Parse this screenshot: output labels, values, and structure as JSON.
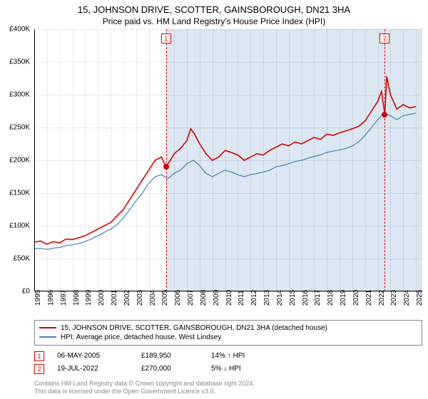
{
  "title": "15, JOHNSON DRIVE, SCOTTER, GAINSBOROUGH, DN21 3HA",
  "subtitle": "Price paid vs. HM Land Registry's House Price Index (HPI)",
  "chart": {
    "type": "line",
    "background_color": "#ffffff",
    "grid_color": "#e8e8e8",
    "shade_color": "#dbe7f2",
    "xlim": [
      1995,
      2025.5
    ],
    "ylim": [
      0,
      400000
    ],
    "yticks": [
      {
        "v": 0,
        "label": "£0"
      },
      {
        "v": 50000,
        "label": "£50K"
      },
      {
        "v": 100000,
        "label": "£100K"
      },
      {
        "v": 150000,
        "label": "£150K"
      },
      {
        "v": 200000,
        "label": "£200K"
      },
      {
        "v": 250000,
        "label": "£250K"
      },
      {
        "v": 300000,
        "label": "£300K"
      },
      {
        "v": 350000,
        "label": "£350K"
      },
      {
        "v": 400000,
        "label": "£400K"
      }
    ],
    "xticks": [
      1995,
      1996,
      1997,
      1998,
      1999,
      2000,
      2001,
      2002,
      2003,
      2004,
      2005,
      2006,
      2007,
      2008,
      2009,
      2010,
      2011,
      2012,
      2013,
      2014,
      2015,
      2016,
      2017,
      2018,
      2019,
      2020,
      2021,
      2022,
      2023,
      2024,
      2025
    ],
    "shade_start": 2005.35,
    "shade_end": 2025.5,
    "series": [
      {
        "name": "price_paid",
        "label": "15, JOHNSON DRIVE, SCOTTER, GAINSBOROUGH, DN21 3HA (detached house)",
        "color": "#d40000",
        "width": 1.6,
        "points": [
          [
            1995.0,
            75000
          ],
          [
            1995.5,
            77000
          ],
          [
            1996.0,
            72000
          ],
          [
            1996.5,
            76000
          ],
          [
            1997.0,
            74000
          ],
          [
            1997.5,
            80000
          ],
          [
            1998.0,
            79000
          ],
          [
            1998.5,
            82000
          ],
          [
            1999.0,
            85000
          ],
          [
            1999.5,
            90000
          ],
          [
            2000.0,
            95000
          ],
          [
            2000.5,
            100000
          ],
          [
            2001.0,
            105000
          ],
          [
            2001.5,
            115000
          ],
          [
            2002.0,
            125000
          ],
          [
            2002.5,
            140000
          ],
          [
            2003.0,
            155000
          ],
          [
            2003.5,
            170000
          ],
          [
            2004.0,
            185000
          ],
          [
            2004.5,
            200000
          ],
          [
            2005.0,
            205000
          ],
          [
            2005.35,
            189950
          ],
          [
            2005.7,
            200000
          ],
          [
            2006.0,
            210000
          ],
          [
            2006.5,
            218000
          ],
          [
            2007.0,
            230000
          ],
          [
            2007.3,
            248000
          ],
          [
            2007.6,
            240000
          ],
          [
            2008.0,
            225000
          ],
          [
            2008.5,
            210000
          ],
          [
            2009.0,
            200000
          ],
          [
            2009.5,
            205000
          ],
          [
            2010.0,
            215000
          ],
          [
            2010.5,
            212000
          ],
          [
            2011.0,
            208000
          ],
          [
            2011.5,
            200000
          ],
          [
            2012.0,
            205000
          ],
          [
            2012.5,
            210000
          ],
          [
            2013.0,
            208000
          ],
          [
            2013.5,
            215000
          ],
          [
            2014.0,
            220000
          ],
          [
            2014.5,
            225000
          ],
          [
            2015.0,
            222000
          ],
          [
            2015.5,
            228000
          ],
          [
            2016.0,
            225000
          ],
          [
            2016.5,
            230000
          ],
          [
            2017.0,
            235000
          ],
          [
            2017.5,
            232000
          ],
          [
            2018.0,
            240000
          ],
          [
            2018.5,
            238000
          ],
          [
            2019.0,
            242000
          ],
          [
            2019.5,
            245000
          ],
          [
            2020.0,
            248000
          ],
          [
            2020.5,
            252000
          ],
          [
            2021.0,
            260000
          ],
          [
            2021.5,
            275000
          ],
          [
            2022.0,
            290000
          ],
          [
            2022.3,
            305000
          ],
          [
            2022.55,
            270000
          ],
          [
            2022.7,
            328000
          ],
          [
            2023.0,
            300000
          ],
          [
            2023.5,
            278000
          ],
          [
            2024.0,
            285000
          ],
          [
            2024.5,
            280000
          ],
          [
            2025.0,
            282000
          ]
        ]
      },
      {
        "name": "hpi",
        "label": "HPI: Average price, detached house, West Lindsey",
        "color": "#4a7fb5",
        "width": 1.2,
        "points": [
          [
            1995.0,
            65000
          ],
          [
            1995.5,
            66000
          ],
          [
            1996.0,
            64000
          ],
          [
            1996.5,
            66000
          ],
          [
            1997.0,
            67000
          ],
          [
            1997.5,
            70000
          ],
          [
            1998.0,
            71000
          ],
          [
            1998.5,
            73000
          ],
          [
            1999.0,
            76000
          ],
          [
            1999.5,
            80000
          ],
          [
            2000.0,
            85000
          ],
          [
            2000.5,
            90000
          ],
          [
            2001.0,
            95000
          ],
          [
            2001.5,
            102000
          ],
          [
            2002.0,
            112000
          ],
          [
            2002.5,
            125000
          ],
          [
            2003.0,
            138000
          ],
          [
            2003.5,
            150000
          ],
          [
            2004.0,
            165000
          ],
          [
            2004.5,
            175000
          ],
          [
            2005.0,
            178000
          ],
          [
            2005.5,
            172000
          ],
          [
            2006.0,
            180000
          ],
          [
            2006.5,
            185000
          ],
          [
            2007.0,
            195000
          ],
          [
            2007.5,
            200000
          ],
          [
            2008.0,
            192000
          ],
          [
            2008.5,
            180000
          ],
          [
            2009.0,
            175000
          ],
          [
            2009.5,
            180000
          ],
          [
            2010.0,
            185000
          ],
          [
            2010.5,
            182000
          ],
          [
            2011.0,
            178000
          ],
          [
            2011.5,
            175000
          ],
          [
            2012.0,
            178000
          ],
          [
            2012.5,
            180000
          ],
          [
            2013.0,
            182000
          ],
          [
            2013.5,
            185000
          ],
          [
            2014.0,
            190000
          ],
          [
            2014.5,
            192000
          ],
          [
            2015.0,
            195000
          ],
          [
            2015.5,
            198000
          ],
          [
            2016.0,
            200000
          ],
          [
            2016.5,
            203000
          ],
          [
            2017.0,
            206000
          ],
          [
            2017.5,
            208000
          ],
          [
            2018.0,
            212000
          ],
          [
            2018.5,
            214000
          ],
          [
            2019.0,
            216000
          ],
          [
            2019.5,
            218000
          ],
          [
            2020.0,
            222000
          ],
          [
            2020.5,
            228000
          ],
          [
            2021.0,
            238000
          ],
          [
            2021.5,
            250000
          ],
          [
            2022.0,
            262000
          ],
          [
            2022.5,
            272000
          ],
          [
            2023.0,
            268000
          ],
          [
            2023.5,
            262000
          ],
          [
            2024.0,
            268000
          ],
          [
            2024.5,
            270000
          ],
          [
            2025.0,
            272000
          ]
        ]
      }
    ],
    "markers": [
      {
        "id": "1",
        "x": 2005.35,
        "y": 189950,
        "dot_color": "#d40000"
      },
      {
        "id": "2",
        "x": 2022.55,
        "y": 270000,
        "dot_color": "#d40000"
      }
    ]
  },
  "legend": {
    "series1": "15, JOHNSON DRIVE, SCOTTER, GAINSBOROUGH, DN21 3HA (detached house)",
    "series2": "HPI: Average price, detached house, West Lindsey"
  },
  "sales": [
    {
      "id": "1",
      "date": "06-MAY-2005",
      "price": "£189,950",
      "delta": "14% ↑ HPI"
    },
    {
      "id": "2",
      "date": "19-JUL-2022",
      "price": "£270,000",
      "delta": "5% ↓ HPI"
    }
  ],
  "license": {
    "line1": "Contains HM Land Registry data © Crown copyright and database right 2024.",
    "line2": "This data is licensed under the Open Government Licence v3.0."
  }
}
